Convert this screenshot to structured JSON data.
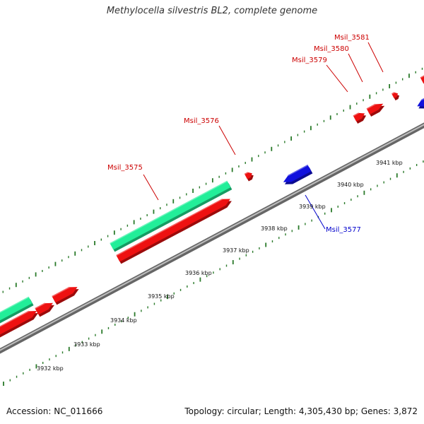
{
  "title": "Methylocella silvestris BL2, complete genome",
  "footer": {
    "accession": "Accession: NC_011666",
    "topology": "Topology: circular; Length: 4,305,430 bp; Genes: 3,872"
  },
  "colors": {
    "forward_cds": "#ee1111",
    "reverse_cds": "#1111dd",
    "rna": "#22ee99",
    "tick_green": "#2a7a2a",
    "backbone": "#888888",
    "label_forward": "#cc0000",
    "label_reverse": "#0000cc"
  },
  "scale": {
    "unit": "kbp",
    "labels": [
      "3932 kbp",
      "3933 kbp",
      "3934 kbp",
      "3935 kbp",
      "3936 kbp",
      "3937 kbp",
      "3938 kbp",
      "3939 kbp",
      "3940 kbp",
      "3941 kbp"
    ]
  },
  "gene_labels": [
    {
      "text": "Msil_3575",
      "strand": "forward"
    },
    {
      "text": "Msil_3576",
      "strand": "forward"
    },
    {
      "text": "Msil_3577",
      "strand": "reverse"
    },
    {
      "text": "Msil_3579",
      "strand": "forward"
    },
    {
      "text": "Msil_3580",
      "strand": "forward"
    },
    {
      "text": "Msil_3581",
      "strand": "forward"
    }
  ]
}
